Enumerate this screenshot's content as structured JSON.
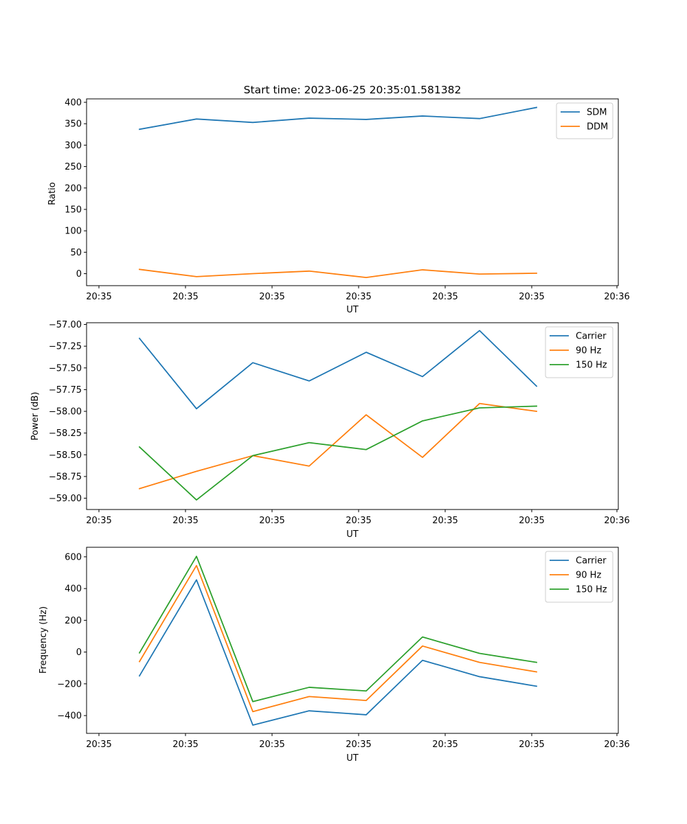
{
  "chart_data": [
    {
      "type": "line",
      "title": "Start time: 2023-06-25 20:35:01.581382",
      "xlabel": "UT",
      "ylabel": "Ratio",
      "x_tick_labels": [
        "20:35",
        "20:35",
        "20:35",
        "20:35",
        "20:35",
        "20:35",
        "20:35",
        "20:36"
      ],
      "y_ticks": [
        0,
        50,
        100,
        150,
        200,
        250,
        300,
        350,
        400
      ],
      "y_tick_labels": [
        "0",
        "50",
        "100",
        "150",
        "200",
        "250",
        "300",
        "350",
        "400"
      ],
      "ylim": [
        -28,
        408
      ],
      "legend_position": "top-right",
      "grid": false,
      "series": [
        {
          "name": "SDM",
          "color": "#1f77b4",
          "values": [
            337,
            361,
            353,
            363,
            360,
            368,
            362,
            388
          ]
        },
        {
          "name": "DDM",
          "color": "#ff7f0e",
          "values": [
            10,
            -7,
            0,
            6,
            -9,
            9,
            -1,
            1
          ]
        }
      ]
    },
    {
      "type": "line",
      "title": "",
      "xlabel": "UT",
      "ylabel": "Power (dB)",
      "x_tick_labels": [
        "20:35",
        "20:35",
        "20:35",
        "20:35",
        "20:35",
        "20:35",
        "20:35",
        "20:36"
      ],
      "y_ticks": [
        -59.0,
        -58.75,
        -58.5,
        -58.25,
        -58.0,
        -57.75,
        -57.5,
        -57.25,
        -57.0
      ],
      "y_tick_labels": [
        "−59.00",
        "−58.75",
        "−58.50",
        "−58.25",
        "−58.00",
        "−57.75",
        "−57.50",
        "−57.25",
        "−57.00"
      ],
      "ylim": [
        -59.13,
        -56.98
      ],
      "legend_position": "top-right",
      "grid": false,
      "series": [
        {
          "name": "Carrier",
          "color": "#1f77b4",
          "values": [
            -57.16,
            -57.97,
            -57.44,
            -57.65,
            -57.32,
            -57.6,
            -57.07,
            -57.71
          ]
        },
        {
          "name": "90 Hz",
          "color": "#ff7f0e",
          "values": [
            -58.89,
            -58.69,
            -58.51,
            -58.63,
            -58.04,
            -58.53,
            -57.91,
            -58.0
          ]
        },
        {
          "name": "150 Hz",
          "color": "#2ca02c",
          "values": [
            -58.41,
            -59.02,
            -58.51,
            -58.36,
            -58.44,
            -58.11,
            -57.96,
            -57.94
          ]
        }
      ]
    },
    {
      "type": "line",
      "title": "",
      "xlabel": "UT",
      "ylabel": "Frequency (Hz)",
      "x_tick_labels": [
        "20:35",
        "20:35",
        "20:35",
        "20:35",
        "20:35",
        "20:35",
        "20:35",
        "20:36"
      ],
      "y_ticks": [
        -400,
        -200,
        0,
        200,
        400,
        600
      ],
      "y_tick_labels": [
        "−400",
        "−200",
        "0",
        "200",
        "400",
        "600"
      ],
      "ylim": [
        -512,
        660
      ],
      "legend_position": "top-right",
      "grid": false,
      "series": [
        {
          "name": "Carrier",
          "color": "#1f77b4",
          "values": [
            -150,
            455,
            -460,
            -370,
            -395,
            -52,
            -155,
            -215
          ]
        },
        {
          "name": "90 Hz",
          "color": "#ff7f0e",
          "values": [
            -60,
            545,
            -375,
            -280,
            -305,
            38,
            -65,
            -125
          ]
        },
        {
          "name": "150 Hz",
          "color": "#2ca02c",
          "values": [
            -5,
            603,
            -312,
            -222,
            -245,
            95,
            -8,
            -65
          ]
        }
      ]
    }
  ]
}
